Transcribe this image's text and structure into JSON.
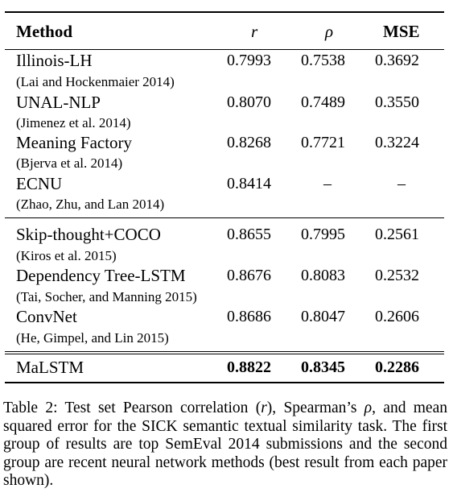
{
  "table": {
    "headers": {
      "method": "Method",
      "r": "r",
      "rho": "ρ",
      "mse": "MSE"
    },
    "groups": [
      [
        {
          "name": "Illinois-LH",
          "cite": "(Lai and Hockenmaier 2014)",
          "r": "0.7993",
          "rho": "0.7538",
          "mse": "0.3692"
        },
        {
          "name": "UNAL-NLP",
          "cite": "(Jimenez et al. 2014)",
          "r": "0.8070",
          "rho": "0.7489",
          "mse": "0.3550"
        },
        {
          "name": "Meaning Factory",
          "cite": "(Bjerva et al. 2014)",
          "r": "0.8268",
          "rho": "0.7721",
          "mse": "0.3224"
        },
        {
          "name": "ECNU",
          "cite": "(Zhao, Zhu, and Lan 2014)",
          "r": "0.8414",
          "rho": "–",
          "mse": "–"
        }
      ],
      [
        {
          "name": "Skip-thought+COCO",
          "cite": "(Kiros et al. 2015)",
          "r": "0.8655",
          "rho": "0.7995",
          "mse": "0.2561"
        },
        {
          "name": "Dependency Tree-LSTM",
          "cite": "(Tai, Socher, and Manning 2015)",
          "r": "0.8676",
          "rho": "0.8083",
          "mse": "0.2532"
        },
        {
          "name": "ConvNet",
          "cite": "(He, Gimpel, and Lin 2015)",
          "r": "0.8686",
          "rho": "0.8047",
          "mse": "0.2606"
        }
      ],
      [
        {
          "name": "MaLSTM",
          "r": "0.8822",
          "rho": "0.8345",
          "mse": "0.2286"
        }
      ]
    ]
  },
  "caption": {
    "label": "Table 2:",
    "p1": " Test set Pearson correlation (",
    "r": "r",
    "p2": "), Spearman’s ",
    "rho": "ρ",
    "p3": ", and mean squared error for the SICK semantic textual similarity task. The first group of results are top SemEval 2014 submissions and the second group are recent neural network methods (best result from each paper shown)."
  }
}
